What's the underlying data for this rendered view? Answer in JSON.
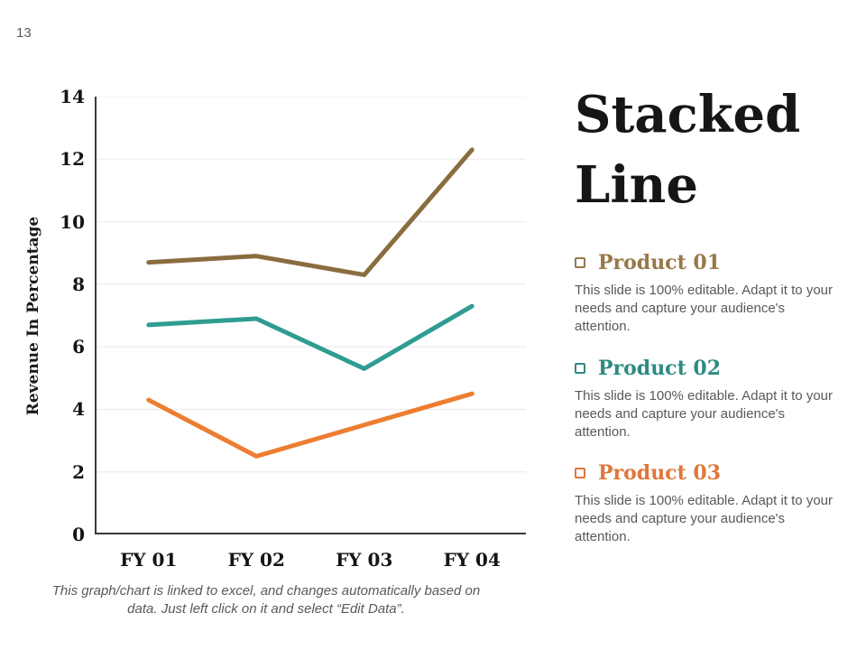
{
  "page": {
    "number": "13"
  },
  "title": {
    "text": "Stacked Line"
  },
  "chart_data": {
    "type": "line",
    "categories": [
      "FY 01",
      "FY 02",
      "FY 03",
      "FY 04"
    ],
    "series": [
      {
        "name": "Product 01",
        "values": [
          8.7,
          8.9,
          8.3,
          12.3
        ],
        "color": "#8a6d3f"
      },
      {
        "name": "Product 02",
        "values": [
          6.7,
          6.9,
          5.3,
          7.3
        ],
        "color": "#2f9c92"
      },
      {
        "name": "Product 03",
        "values": [
          4.3,
          2.5,
          3.5,
          4.5
        ],
        "color": "#ed7d31"
      }
    ],
    "title": "",
    "xlabel": "",
    "ylabel": "Revenue In Percentage",
    "ylim": [
      0,
      14
    ],
    "ytick_step": 2,
    "grid": true,
    "legend_position": "none",
    "axis_color": "#3a3a3a",
    "grid_color": "#e8e8e8"
  },
  "footer": {
    "text": "This graph/chart is linked to excel, and changes automatically based on data. Just left click on it and select “Edit Data”."
  },
  "products": [
    {
      "label": "Product 01",
      "color": "#97784a",
      "description": "This slide is 100% editable. Adapt it to your needs and capture your audience's attention."
    },
    {
      "label": "Product 02",
      "color": "#2e8b84",
      "description": "This slide is 100% editable. Adapt it to your needs and capture your audience's attention."
    },
    {
      "label": "Product 03",
      "color": "#e0763a",
      "description": "This slide is 100% editable. Adapt it to your needs and capture your audience's attention."
    }
  ]
}
